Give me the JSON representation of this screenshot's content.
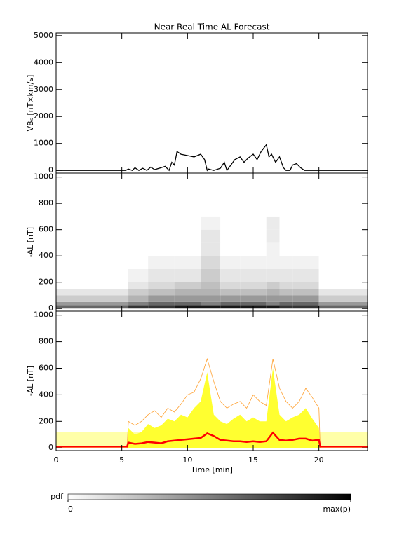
{
  "chart_data": [
    {
      "type": "line",
      "title": "Near Real Time AL Forecast",
      "y_label": "VBₛ [nT×km/s]",
      "xlim": [
        0,
        23.7
      ],
      "xticks": [
        0,
        5,
        10,
        15,
        20
      ],
      "xtick_labels": false,
      "ylim": [
        -100,
        5100
      ],
      "yticks": [
        0,
        1000,
        2000,
        3000,
        4000,
        5000
      ],
      "x": [
        0,
        5.3,
        5.5,
        5.8,
        6,
        6.3,
        6.6,
        6.9,
        7.2,
        7.5,
        8,
        8.3,
        8.6,
        8.8,
        9,
        9.2,
        9.5,
        10,
        10.5,
        11,
        11.3,
        11.5,
        11.6,
        12,
        12.5,
        12.8,
        13,
        13.3,
        13.6,
        14,
        14.3,
        14.6,
        15,
        15.3,
        15.6,
        16,
        16.2,
        16.4,
        16.7,
        17,
        17.3,
        17.5,
        17.8,
        18,
        18.3,
        18.6,
        18.9,
        19.2,
        23.7
      ],
      "series": [
        {
          "color": "#000000",
          "values": [
            0,
            0,
            50,
            0,
            100,
            0,
            80,
            0,
            120,
            30,
            100,
            150,
            0,
            300,
            200,
            700,
            600,
            550,
            500,
            600,
            400,
            0,
            50,
            0,
            80,
            300,
            0,
            200,
            400,
            500,
            300,
            450,
            600,
            400,
            700,
            950,
            500,
            600,
            300,
            500,
            100,
            0,
            0,
            200,
            250,
            100,
            0,
            0,
            0
          ]
        }
      ]
    },
    {
      "type": "heatmap",
      "y_label": "-AL [nT]",
      "xlim": [
        0,
        23.7
      ],
      "xticks": [
        0,
        5,
        10,
        15,
        20
      ],
      "xtick_labels": false,
      "ylim": [
        -20,
        1030
      ],
      "yticks": [
        0,
        200,
        400,
        600,
        800,
        1000
      ],
      "x_edges": [
        0,
        5.5,
        7,
        9,
        11,
        12.5,
        14,
        16,
        17,
        18,
        20,
        23.7
      ],
      "y_edges": [
        0,
        25,
        50,
        100,
        150,
        200,
        300,
        400,
        500,
        600,
        700
      ],
      "z": [
        [
          0.6,
          0.8,
          0.8,
          0.9,
          0.9,
          0.9,
          0.9,
          0.9,
          0.8,
          0.8,
          0.6
        ],
        [
          0.4,
          0.5,
          0.6,
          0.6,
          0.5,
          0.6,
          0.6,
          0.5,
          0.6,
          0.6,
          0.4
        ],
        [
          0.2,
          0.3,
          0.4,
          0.4,
          0.4,
          0.4,
          0.4,
          0.4,
          0.4,
          0.4,
          0.2
        ],
        [
          0.1,
          0.2,
          0.25,
          0.3,
          0.3,
          0.25,
          0.25,
          0.3,
          0.25,
          0.25,
          0.1
        ],
        [
          0,
          0.1,
          0.15,
          0.2,
          0.25,
          0.15,
          0.15,
          0.2,
          0.15,
          0.15,
          0
        ],
        [
          0,
          0.05,
          0.1,
          0.1,
          0.2,
          0.1,
          0.1,
          0.1,
          0.1,
          0.1,
          0
        ],
        [
          0,
          0,
          0.05,
          0.05,
          0.15,
          0.05,
          0.05,
          0.05,
          0.05,
          0.05,
          0
        ],
        [
          0,
          0,
          0,
          0,
          0.1,
          0,
          0,
          0.05,
          0,
          0,
          0
        ],
        [
          0,
          0,
          0,
          0,
          0.1,
          0,
          0,
          0.08,
          0,
          0,
          0
        ],
        [
          0,
          0,
          0,
          0,
          0.05,
          0,
          0,
          0.08,
          0,
          0,
          0
        ]
      ]
    },
    {
      "type": "area",
      "y_label": "-AL [nT]",
      "x_label": "Time [min]",
      "xlim": [
        0,
        23.7
      ],
      "xticks": [
        0,
        5,
        10,
        15,
        20
      ],
      "xtick_labels": true,
      "ylim": [
        -20,
        1030
      ],
      "yticks": [
        0,
        200,
        400,
        600,
        800,
        1000
      ],
      "x": [
        0,
        5.4,
        5.5,
        6,
        6.5,
        7,
        7.5,
        8,
        8.5,
        9,
        9.5,
        10,
        10.5,
        11,
        11.5,
        12,
        12.5,
        13,
        13.5,
        14,
        14.5,
        15,
        15.5,
        16,
        16.5,
        17,
        17.5,
        18,
        18.5,
        19,
        19.5,
        20,
        20.1,
        23.7
      ],
      "series": [
        {
          "color": "#ffffa8",
          "fill": true,
          "values": [
            120,
            120,
            120,
            120,
            120,
            120,
            120,
            120,
            120,
            120,
            120,
            120,
            120,
            120,
            120,
            120,
            120,
            120,
            120,
            120,
            120,
            120,
            120,
            120,
            120,
            120,
            120,
            120,
            120,
            120,
            120,
            120,
            120,
            120
          ]
        },
        {
          "color": "#ffff30",
          "fill": true,
          "values": [
            0,
            0,
            150,
            100,
            120,
            180,
            150,
            170,
            220,
            200,
            250,
            230,
            300,
            350,
            570,
            250,
            200,
            180,
            220,
            250,
            200,
            230,
            200,
            200,
            600,
            250,
            200,
            230,
            250,
            300,
            220,
            150,
            0,
            0
          ]
        },
        {
          "color": "#ffa030",
          "fill": false,
          "values": [
            0,
            0,
            200,
            170,
            200,
            250,
            280,
            230,
            300,
            270,
            330,
            400,
            420,
            520,
            670,
            500,
            350,
            300,
            330,
            350,
            300,
            400,
            350,
            320,
            670,
            450,
            350,
            300,
            350,
            450,
            380,
            300,
            0,
            0
          ]
        },
        {
          "color": "#ff0000",
          "fill": false,
          "values": [
            10,
            10,
            40,
            30,
            35,
            45,
            40,
            35,
            50,
            55,
            60,
            65,
            70,
            75,
            110,
            90,
            60,
            55,
            50,
            50,
            45,
            50,
            45,
            50,
            115,
            60,
            55,
            60,
            70,
            70,
            55,
            60,
            10,
            10
          ]
        }
      ]
    },
    {
      "type": "colorbar",
      "title": "pdf",
      "xlim": [
        0,
        1
      ],
      "xticks": [
        0,
        {
          "value": 1,
          "label": "max(p)"
        }
      ],
      "colors": [
        "#ffffff",
        "#000000"
      ]
    }
  ]
}
